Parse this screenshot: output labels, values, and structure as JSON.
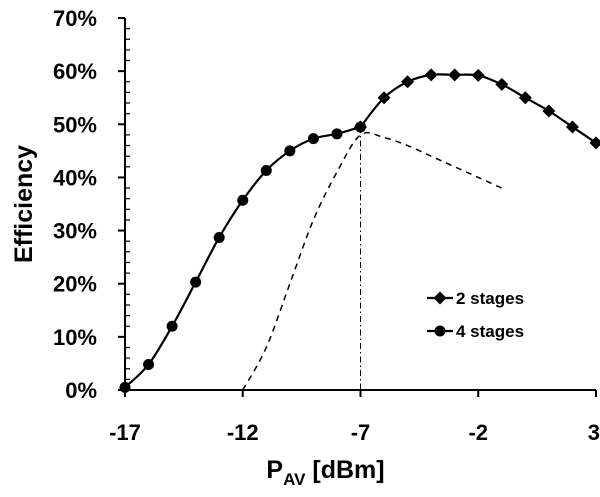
{
  "chart_data": {
    "type": "line",
    "title": "",
    "xlabel_main": "P",
    "xlabel_sub": "AV",
    "xlabel_unit": " [dBm]",
    "ylabel": "Efficiency",
    "xlim": [
      -17,
      3
    ],
    "ylim": [
      0,
      70
    ],
    "x_ticks": [
      -17,
      -12,
      -7,
      -2,
      3
    ],
    "x_tick_labels": [
      "-17",
      "-12",
      "-7",
      "-2",
      "3"
    ],
    "y_ticks": [
      0,
      10,
      20,
      30,
      40,
      50,
      60,
      70
    ],
    "y_tick_labels": [
      "0%",
      "10%",
      "20%",
      "30%",
      "40%",
      "50%",
      "60%",
      "70%"
    ],
    "grid": false,
    "legend_position": "lower-right",
    "series": [
      {
        "name": "2 stages",
        "marker": "diamond",
        "line": "solid",
        "x": [
          -7,
          -6,
          -5,
          -4,
          -3,
          -2,
          -1,
          0,
          1,
          2,
          3
        ],
        "y": [
          49.5,
          55,
          58,
          59.3,
          59.3,
          59.2,
          57.5,
          55,
          52.5,
          49.5,
          46.5
        ]
      },
      {
        "name": "4 stages",
        "marker": "circle",
        "line": "solid",
        "x": [
          -17,
          -16,
          -15,
          -14,
          -13,
          -12,
          -11,
          -10,
          -9,
          -8,
          -7
        ],
        "y": [
          0.5,
          4.8,
          12,
          20.3,
          28.7,
          35.7,
          41.3,
          45,
          47.3,
          48.2,
          49.5
        ]
      },
      {
        "name": "",
        "marker": "none",
        "line": "dashed",
        "x": [
          -12,
          -11,
          -10,
          -9,
          -8,
          -7,
          -6,
          -5,
          -4,
          -3,
          -2,
          -1
        ],
        "y": [
          0,
          8,
          20,
          32,
          41,
          48,
          47.5,
          46,
          44,
          42,
          40,
          38
        ]
      }
    ],
    "annotations": [
      {
        "type": "vertical-dash-dot-line",
        "x": -7,
        "y_from": 0,
        "y_to": 49.5
      }
    ]
  }
}
